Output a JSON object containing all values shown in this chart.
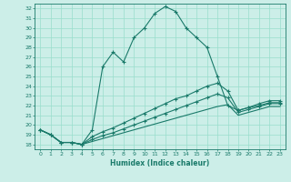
{
  "xlabel": "Humidex (Indice chaleur)",
  "background_color": "#cceee8",
  "grid_color": "#99ddcc",
  "line_color": "#1a7a6a",
  "xlim": [
    -0.5,
    23.5
  ],
  "ylim": [
    17.5,
    32.5
  ],
  "yticks": [
    18,
    19,
    20,
    21,
    22,
    23,
    24,
    25,
    26,
    27,
    28,
    29,
    30,
    31,
    32
  ],
  "xticks": [
    0,
    1,
    2,
    3,
    4,
    5,
    6,
    7,
    8,
    9,
    10,
    11,
    12,
    13,
    14,
    15,
    16,
    17,
    18,
    19,
    20,
    21,
    22,
    23
  ],
  "line1_x": [
    0,
    1,
    2,
    3,
    4,
    5,
    6,
    7,
    8,
    9,
    10,
    11,
    12,
    13,
    14,
    15,
    16,
    17,
    18,
    19,
    20,
    21,
    22,
    23
  ],
  "line1_y": [
    19.5,
    19.0,
    18.2,
    18.2,
    18.0,
    19.5,
    26.0,
    27.5,
    26.5,
    29.0,
    30.0,
    31.5,
    32.2,
    31.7,
    30.0,
    29.0,
    28.0,
    25.0,
    22.0,
    21.5,
    21.8,
    22.2,
    22.5,
    22.5
  ],
  "line2_x": [
    0,
    1,
    2,
    3,
    4,
    5,
    6,
    7,
    8,
    9,
    10,
    11,
    12,
    13,
    14,
    15,
    16,
    17,
    18,
    19,
    20,
    21,
    22,
    23
  ],
  "line2_y": [
    19.5,
    19.0,
    18.2,
    18.2,
    18.0,
    18.8,
    19.3,
    19.7,
    20.2,
    20.7,
    21.2,
    21.7,
    22.2,
    22.7,
    23.0,
    23.5,
    24.0,
    24.3,
    23.5,
    21.5,
    21.8,
    22.0,
    22.3,
    22.3
  ],
  "line3_x": [
    0,
    1,
    2,
    3,
    4,
    5,
    6,
    7,
    8,
    9,
    10,
    11,
    12,
    13,
    14,
    15,
    16,
    17,
    18,
    19,
    20,
    21,
    22,
    23
  ],
  "line3_y": [
    19.5,
    19.0,
    18.2,
    18.2,
    18.0,
    18.5,
    18.9,
    19.2,
    19.6,
    20.0,
    20.4,
    20.8,
    21.2,
    21.6,
    22.0,
    22.4,
    22.8,
    23.2,
    22.8,
    21.3,
    21.6,
    21.9,
    22.2,
    22.2
  ],
  "line4_x": [
    0,
    1,
    2,
    3,
    4,
    5,
    6,
    7,
    8,
    9,
    10,
    11,
    12,
    13,
    14,
    15,
    16,
    17,
    18,
    19,
    20,
    21,
    22,
    23
  ],
  "line4_y": [
    19.5,
    19.0,
    18.2,
    18.2,
    18.0,
    18.3,
    18.6,
    18.9,
    19.2,
    19.5,
    19.8,
    20.1,
    20.4,
    20.7,
    21.0,
    21.3,
    21.6,
    21.9,
    22.1,
    21.0,
    21.3,
    21.6,
    21.9,
    21.9
  ]
}
